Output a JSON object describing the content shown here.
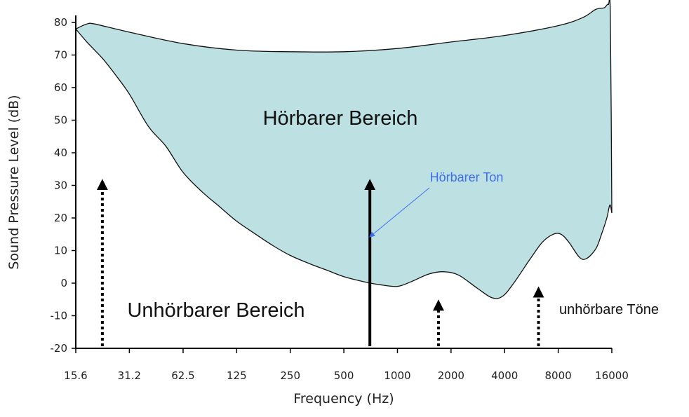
{
  "chart_data": {
    "type": "area",
    "x_scale": "log2",
    "xlabel": "Frequency (Hz)",
    "ylabel": "Sound Pressure Level (dB)",
    "ylim": [
      -20,
      80
    ],
    "xlim": [
      15.6,
      16000
    ],
    "x_tick_values": [
      15.6,
      31.2,
      62.5,
      125,
      250,
      500,
      1000,
      2000,
      4000,
      8000,
      16000
    ],
    "x_tick_labels": [
      "15.6",
      "31.2",
      "62.5",
      "125",
      "250",
      "500",
      "1000",
      "2000",
      "4000",
      "8000",
      "16000"
    ],
    "y_ticks": [
      -20,
      -10,
      0,
      10,
      20,
      30,
      40,
      50,
      60,
      70,
      80
    ],
    "regions": {
      "audible": "Hörbarer Bereich",
      "inaudible": "Unhörbarer Bereich"
    },
    "annotations": {
      "audible_tone": "Hörbarer Ton",
      "inaudible_tones": "unhörbare Töne"
    },
    "hearing_threshold": [
      [
        15.6,
        78
      ],
      [
        18,
        74
      ],
      [
        22,
        69
      ],
      [
        26,
        64
      ],
      [
        31.2,
        58
      ],
      [
        40,
        48
      ],
      [
        50,
        42
      ],
      [
        62.5,
        34
      ],
      [
        80,
        28
      ],
      [
        100,
        23.5
      ],
      [
        125,
        19
      ],
      [
        160,
        15
      ],
      [
        200,
        11.5
      ],
      [
        250,
        8.5
      ],
      [
        320,
        6
      ],
      [
        400,
        4
      ],
      [
        500,
        2
      ],
      [
        640,
        0.5
      ],
      [
        800,
        -0.5
      ],
      [
        1000,
        -1
      ],
      [
        1200,
        0.5
      ],
      [
        1500,
        2.8
      ],
      [
        1800,
        3.5
      ],
      [
        2200,
        2.5
      ],
      [
        2800,
        -1.5
      ],
      [
        3400,
        -4.5
      ],
      [
        3900,
        -4
      ],
      [
        4500,
        0
      ],
      [
        5500,
        7
      ],
      [
        6500,
        12.5
      ],
      [
        7500,
        15
      ],
      [
        8300,
        15
      ],
      [
        9200,
        12.5
      ],
      [
        10500,
        8
      ],
      [
        11500,
        7.5
      ],
      [
        13000,
        10.5
      ],
      [
        14000,
        15
      ],
      [
        15000,
        20
      ],
      [
        15600,
        24
      ],
      [
        16000,
        21.5
      ]
    ],
    "upper_limit": [
      [
        15.6,
        78
      ],
      [
        18,
        79.5
      ],
      [
        20,
        79.5
      ],
      [
        31.2,
        77
      ],
      [
        62.5,
        73.5
      ],
      [
        125,
        71.5
      ],
      [
        250,
        71
      ],
      [
        500,
        71
      ],
      [
        1000,
        72
      ],
      [
        2000,
        74
      ],
      [
        4000,
        76
      ],
      [
        8000,
        79
      ],
      [
        11000,
        81.5
      ],
      [
        13000,
        84
      ],
      [
        14500,
        84.5
      ],
      [
        15300,
        85.5
      ],
      [
        15700,
        82
      ],
      [
        16000,
        21.5
      ]
    ],
    "tones": [
      {
        "frequency": 22,
        "level": 32,
        "style": "dotted"
      },
      {
        "frequency": 700,
        "level": 32,
        "style": "solid"
      },
      {
        "frequency": 1700,
        "level": -5,
        "style": "dotted"
      },
      {
        "frequency": 6200,
        "level": -1,
        "style": "dotted"
      }
    ],
    "fill_color": "#bde0e3",
    "label_color": "#3d6df0"
  }
}
